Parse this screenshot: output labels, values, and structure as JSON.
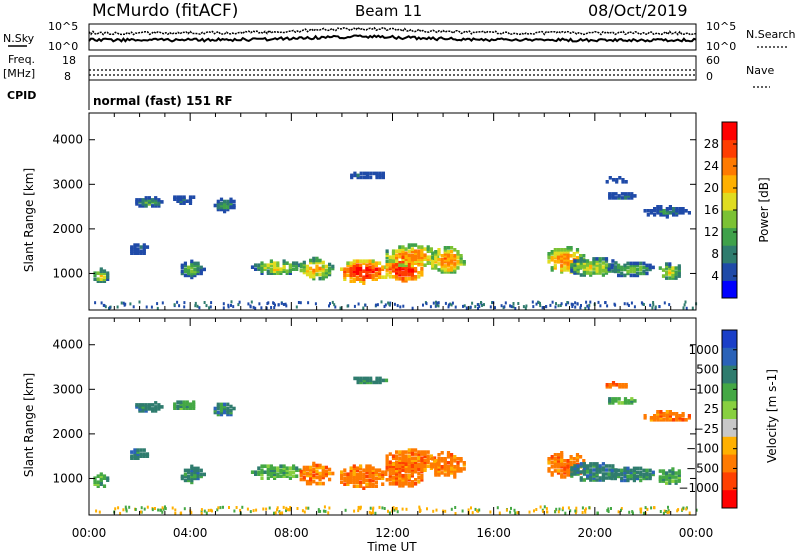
{
  "header": {
    "site": "McMurdo (fitACF)",
    "beam": "Beam 11",
    "date": "08/Oct/2019"
  },
  "noise_panel": {
    "left_label": "N.Sky",
    "right_label": "N.Search",
    "left_ticks": [
      "10^5",
      "10^0"
    ],
    "right_ticks": [
      "10^5",
      "10^0"
    ]
  },
  "freq_panel": {
    "left_label_1": "Freq.",
    "left_label_2": "[MHz]",
    "right_label": "Nave",
    "left_ticks": [
      "18",
      "8"
    ],
    "right_ticks": [
      "60",
      "0"
    ]
  },
  "cpid": {
    "label": "CPID",
    "value": "normal (fast) 151 RF"
  },
  "chart_data": [
    {
      "type": "heatmap",
      "ylabel": "Slant Range [km]",
      "xlabel": "Time UT",
      "xlim": [
        "00:00",
        "24:00"
      ],
      "ylim": [
        180,
        4600
      ],
      "y_ticks": [
        1000,
        2000,
        3000,
        4000
      ],
      "x_ticks": [
        "00:00",
        "04:00",
        "08:00",
        "12:00",
        "16:00",
        "20:00",
        "00:00"
      ],
      "colorbar_label": "Power [dB]",
      "colorbar_ticks": [
        "4",
        "8",
        "12",
        "16",
        "20",
        "24",
        "28"
      ],
      "colorbar_colors": [
        "#0000ff",
        "#1f4aa8",
        "#2f7c6e",
        "#3fa14a",
        "#7bc234",
        "#e0dc20",
        "#ffb000",
        "#ff7a00",
        "#ff3d00",
        "#ff0000"
      ]
    },
    {
      "type": "heatmap",
      "ylabel": "Slant Range [km]",
      "xlabel": "Time UT",
      "xlim": [
        "00:00",
        "24:00"
      ],
      "ylim": [
        180,
        4600
      ],
      "y_ticks": [
        1000,
        2000,
        3000,
        4000
      ],
      "x_ticks": [
        "00:00",
        "04:00",
        "08:00",
        "12:00",
        "16:00",
        "20:00",
        "00:00"
      ],
      "colorbar_label": "Velocity [m s-1]",
      "colorbar_ticks": [
        "1000",
        "500",
        "100",
        "25",
        "−25",
        "−100",
        "−500",
        "−1000"
      ],
      "colorbar_colors": [
        "#1a3fc8",
        "#2a62b8",
        "#2f7c6e",
        "#44a844",
        "#88d040",
        "#c8c8c8",
        "#ffb000",
        "#ff7a00",
        "#ff4000",
        "#ff0000"
      ]
    }
  ],
  "time_axis": {
    "labels": [
      "00:00",
      "04:00",
      "08:00",
      "12:00",
      "16:00",
      "20:00",
      "00:00"
    ],
    "title": "Time UT"
  }
}
